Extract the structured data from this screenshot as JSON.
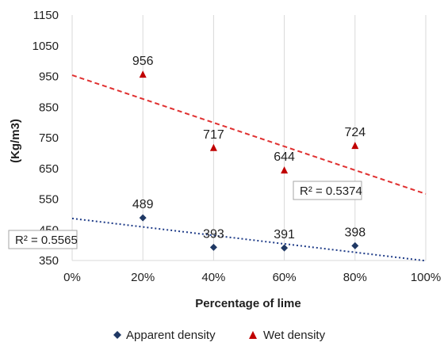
{
  "chart_data": {
    "type": "scatter",
    "xlabel": "Percentage of lime",
    "ylabel": "(Kg/m3)",
    "x_ticks": [
      "0%",
      "20%",
      "40%",
      "60%",
      "80%",
      "100%"
    ],
    "y_ticks": [
      "350",
      "450",
      "550",
      "650",
      "750",
      "850",
      "950",
      "1050",
      "1150"
    ],
    "xlim": [
      0,
      100
    ],
    "ylim": [
      350,
      1150
    ],
    "grid": "vertical",
    "legend_position": "bottom",
    "series": [
      {
        "name": "Apparent density",
        "marker": "diamond",
        "color": "#1f3864",
        "x": [
          20,
          40,
          60,
          80
        ],
        "y": [
          489,
          393,
          391,
          398
        ],
        "labels": [
          "489",
          "393",
          "391",
          "398"
        ],
        "trendline": {
          "type": "linear",
          "start": [
            0,
            487
          ],
          "end": [
            100,
            349
          ],
          "style": "dotted",
          "color": "#1f3c88",
          "r2_label": "R² = 0.5565"
        }
      },
      {
        "name": "Wet density",
        "marker": "triangle",
        "color": "#c00000",
        "x": [
          20,
          40,
          60,
          80
        ],
        "y": [
          956,
          717,
          644,
          724
        ],
        "labels": [
          "956",
          "717",
          "644",
          "724"
        ],
        "trendline": {
          "type": "linear",
          "start": [
            0,
            954
          ],
          "end": [
            100,
            567
          ],
          "style": "dashed",
          "color": "#e03030",
          "r2_label": "R² = 0.5374"
        }
      }
    ]
  }
}
